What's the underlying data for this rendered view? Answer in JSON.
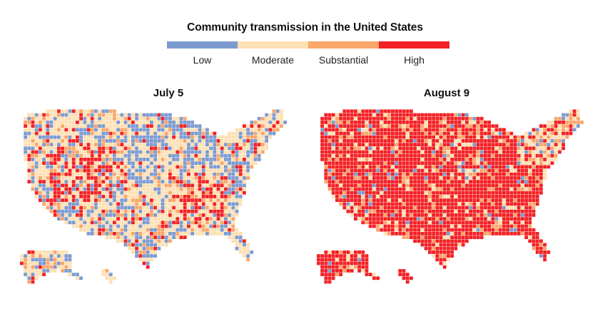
{
  "title": "Community transmission in the United States",
  "legend": [
    {
      "label": "Low",
      "color": "#7d9bd1"
    },
    {
      "label": "Moderate",
      "color": "#fde0b4"
    },
    {
      "label": "Substantial",
      "color": "#f9a66b"
    },
    {
      "label": "High",
      "color": "#f32125"
    }
  ],
  "maps": [
    {
      "title": "July 5",
      "mix": {
        "Low": 0.28,
        "Moderate": 0.47,
        "Substantial": 0.13,
        "High": 0.12
      }
    },
    {
      "title": "August 9",
      "mix": {
        "Low": 0.03,
        "Moderate": 0.08,
        "Substantial": 0.1,
        "High": 0.79
      }
    }
  ]
}
